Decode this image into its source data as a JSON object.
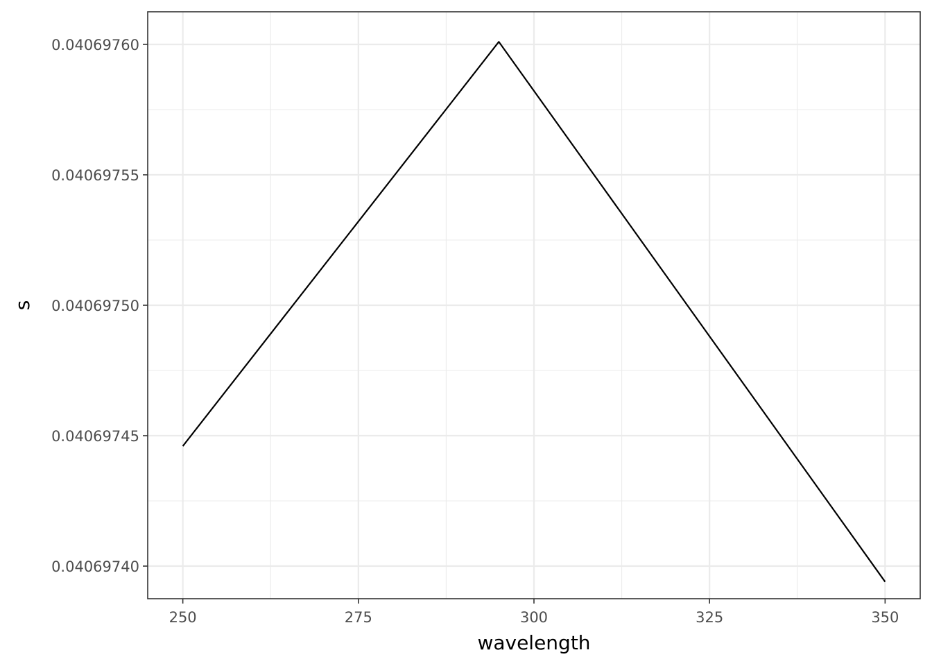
{
  "chart_data": {
    "type": "line",
    "title": "",
    "xlabel": "wavelength",
    "ylabel": "s",
    "x": [
      250,
      295,
      350
    ],
    "y": [
      0.040697446,
      0.040697601,
      0.040697394
    ],
    "xlim": [
      245,
      355
    ],
    "ylim": [
      0.0406973875,
      0.0406976125
    ],
    "x_ticks": [
      250,
      275,
      300,
      325,
      350
    ],
    "x_tick_labels": [
      "250",
      "275",
      "300",
      "325",
      "350"
    ],
    "y_ticks": [
      0.0406974,
      0.04069745,
      0.0406975,
      0.04069755,
      0.0406976
    ],
    "y_tick_labels": [
      "0.04069740",
      "0.04069745",
      "0.04069750",
      "0.04069755",
      "0.04069760"
    ],
    "grid": true,
    "legend": "none",
    "colors": {
      "line": "#000000",
      "grid": "#ebebeb",
      "border": "#333333"
    }
  }
}
